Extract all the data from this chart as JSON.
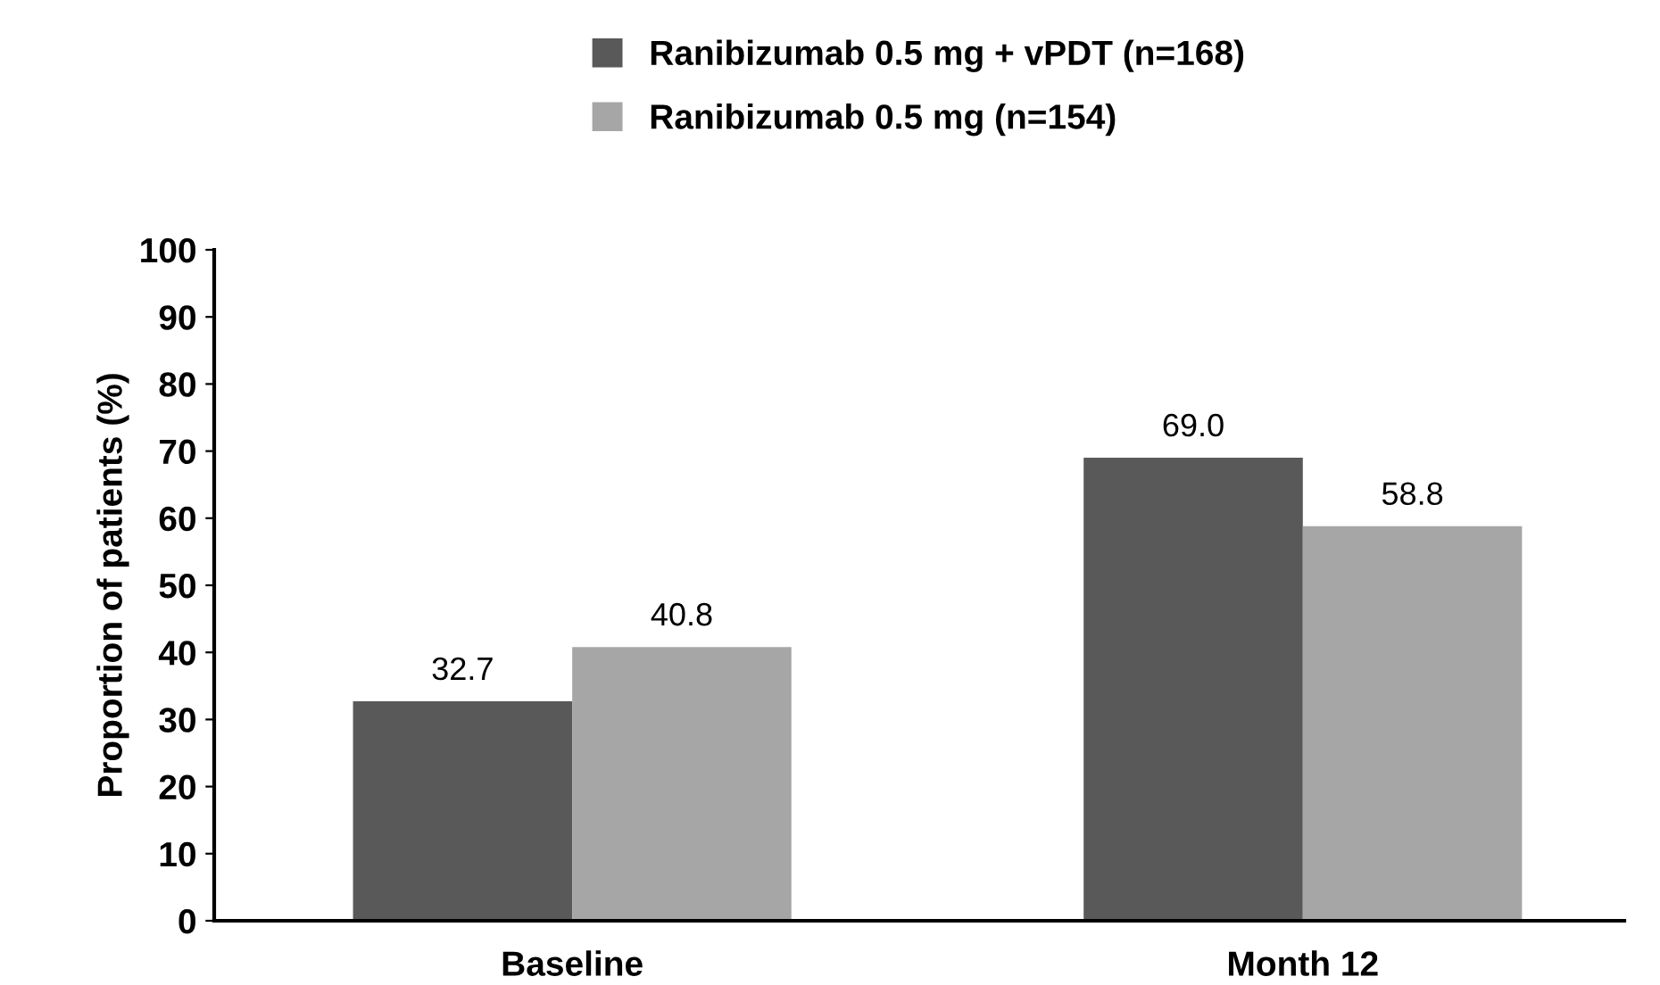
{
  "chart_data": {
    "type": "bar",
    "ylabel": "Proportion of patients (%)",
    "categories": [
      "Baseline",
      "Month 12"
    ],
    "series": [
      {
        "name": "Ranibizumab 0.5 mg + vPDT (n=168)",
        "color": "#595959",
        "values": [
          32.7,
          69.0
        ],
        "value_labels": [
          "32.7",
          "69.0"
        ]
      },
      {
        "name": "Ranibizumab 0.5 mg (n=154)",
        "color": "#a6a6a6",
        "values": [
          40.8,
          58.8
        ],
        "value_labels": [
          "40.8",
          "58.8"
        ]
      }
    ],
    "ylim": [
      0,
      100
    ],
    "yticks": [
      0,
      10,
      20,
      30,
      40,
      50,
      60,
      70,
      80,
      90,
      100
    ],
    "grid": false,
    "legend": "top"
  }
}
